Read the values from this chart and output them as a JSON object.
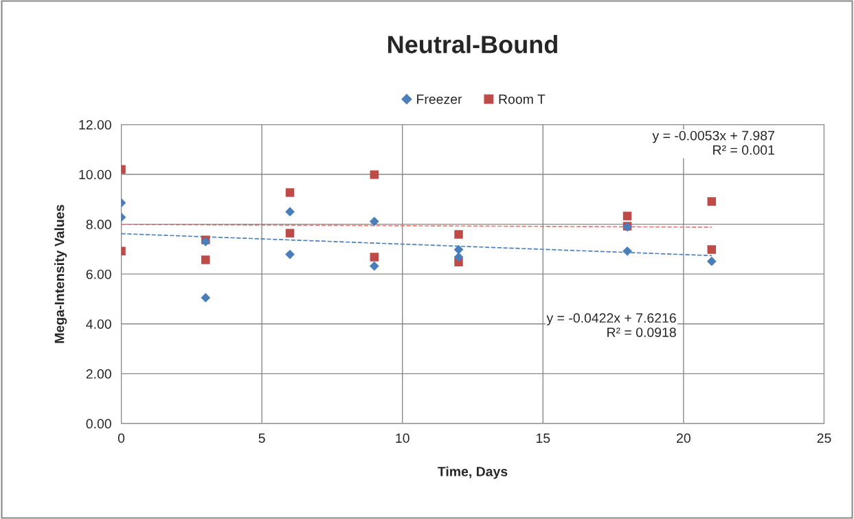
{
  "chart_data": {
    "type": "scatter",
    "title": "Neutral-Bound",
    "xlabel": "Time, Days",
    "ylabel": "Mega-Intensity Values",
    "series": [
      {
        "name": "Freezer",
        "color": "#4a7ebb",
        "marker": "diamond",
        "x": [
          0,
          0,
          3,
          3,
          6,
          6,
          9,
          9,
          12,
          12,
          18,
          18,
          21
        ],
        "values": [
          8.86,
          8.28,
          5.05,
          7.3,
          8.5,
          6.79,
          8.11,
          6.32,
          6.98,
          6.68,
          6.92,
          7.89,
          6.51
        ]
      },
      {
        "name": "Room T",
        "color": "#be4b48",
        "marker": "square",
        "x": [
          0,
          0,
          3,
          3,
          6,
          6,
          9,
          9,
          12,
          12,
          18,
          18,
          21,
          21
        ],
        "values": [
          10.2,
          6.92,
          7.37,
          6.57,
          9.27,
          7.64,
          9.99,
          6.68,
          7.59,
          6.48,
          8.33,
          7.92,
          8.91,
          6.98
        ]
      },
      {
        "type": "line",
        "color": "#4a7ebb",
        "line_style": "dashed",
        "marker": "none",
        "x": [
          0,
          21
        ],
        "values": [
          7.62,
          6.74
        ]
      },
      {
        "type": "line",
        "color": "#e07b78",
        "line_style": "dashed",
        "marker": "none",
        "x": [
          0,
          21
        ],
        "values": [
          7.99,
          7.88
        ]
      }
    ],
    "annotations": [
      "y = -0.0053x + 7.987\nR² = 0.001",
      "y = -0.0422x + 7.6216\nR² = 0.0918"
    ],
    "xlim": [
      0,
      25
    ],
    "xticks": [
      0,
      5,
      10,
      15,
      20,
      25
    ],
    "ylim": [
      0,
      12
    ],
    "yticks": [
      {
        "value": 0,
        "label": "0.00"
      },
      {
        "value": 2,
        "label": "2.00"
      },
      {
        "value": 4,
        "label": "4.00"
      },
      {
        "value": 6,
        "label": "6.00"
      },
      {
        "value": 8,
        "label": "8.00"
      },
      {
        "value": 10,
        "label": "10.00"
      },
      {
        "value": 12,
        "label": "12.00"
      }
    ],
    "grid": true,
    "legend": "top"
  }
}
